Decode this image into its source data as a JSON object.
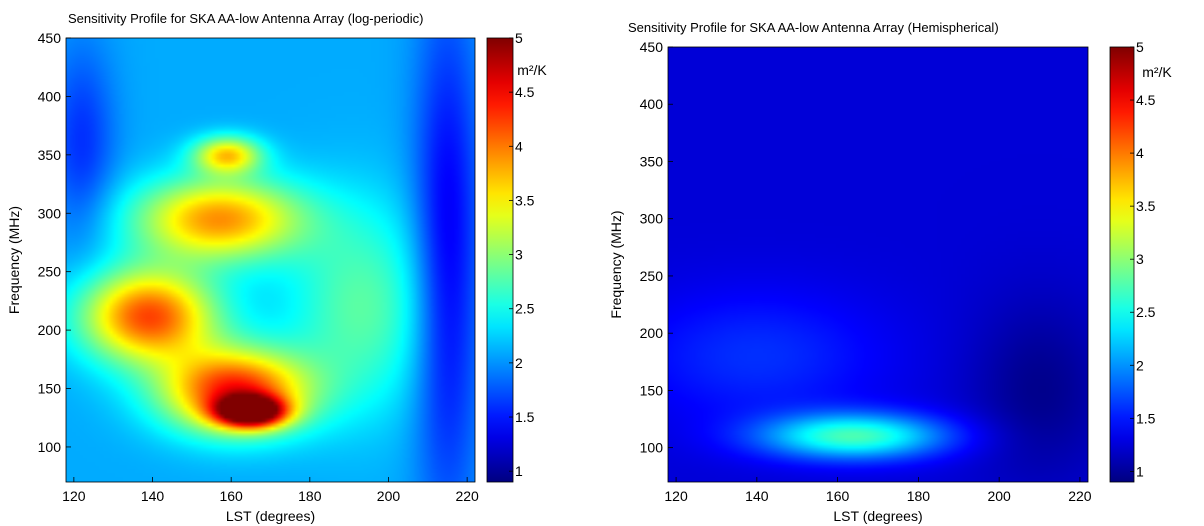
{
  "chart_data": [
    {
      "type": "heatmap",
      "title": "Sensitivity Profile for SKA AA-low Antenna Array (log-periodic)",
      "xlabel": "LST (degrees)",
      "ylabel": "Frequency (MHz)",
      "xlim": [
        118,
        222
      ],
      "ylim": [
        70,
        450
      ],
      "xticks": [
        120,
        140,
        160,
        180,
        200,
        220
      ],
      "yticks": [
        100,
        150,
        200,
        250,
        300,
        350,
        400,
        450
      ],
      "colorbar": {
        "label": "m²/K",
        "range": [
          0.9,
          5
        ],
        "ticks": [
          "1",
          "1.5",
          "2",
          "2.5",
          "3",
          "3.5",
          "4",
          "4.5",
          "5"
        ]
      },
      "background_value": 2.1,
      "features": [
        {
          "x": 139,
          "y": 212,
          "value": 4.2,
          "sx": 12,
          "sy": 28
        },
        {
          "x": 165,
          "y": 130,
          "value": 4.9,
          "sx": 6,
          "sy": 9
        },
        {
          "x": 161,
          "y": 148,
          "value": 4.4,
          "sx": 13,
          "sy": 25
        },
        {
          "x": 157,
          "y": 295,
          "value": 3.9,
          "sx": 15,
          "sy": 25
        },
        {
          "x": 159,
          "y": 350,
          "value": 3.6,
          "sx": 6,
          "sy": 11
        },
        {
          "x": 193,
          "y": 220,
          "value": 2.8,
          "sx": 13,
          "sy": 60
        },
        {
          "x": 215,
          "y": 260,
          "value": 1.3,
          "sx": 6,
          "sy": 150
        },
        {
          "x": 122,
          "y": 360,
          "value": 1.6,
          "sx": 6,
          "sy": 60
        }
      ]
    },
    {
      "type": "heatmap",
      "title": "Sensitivity Profile for SKA AA-low Antenna Array (Hemispherical)",
      "xlabel": "LST (degrees)",
      "ylabel": "Frequency (MHz)",
      "xlim": [
        118,
        222
      ],
      "ylim": [
        70,
        450
      ],
      "xticks": [
        120,
        140,
        160,
        180,
        200,
        220
      ],
      "yticks": [
        100,
        150,
        200,
        250,
        300,
        350,
        400,
        450
      ],
      "colorbar": {
        "label": "m²/K",
        "range": [
          0.9,
          5
        ],
        "ticks": [
          "1",
          "1.5",
          "2",
          "2.5",
          "3",
          "3.5",
          "4",
          "4.5",
          "5"
        ]
      },
      "background_value": 1.25,
      "features": [
        {
          "x": 164,
          "y": 110,
          "value": 2.7,
          "sx": 16,
          "sy": 14
        },
        {
          "x": 140,
          "y": 180,
          "value": 1.6,
          "sx": 22,
          "sy": 40
        },
        {
          "x": 210,
          "y": 150,
          "value": 0.95,
          "sx": 12,
          "sy": 55
        }
      ]
    }
  ]
}
